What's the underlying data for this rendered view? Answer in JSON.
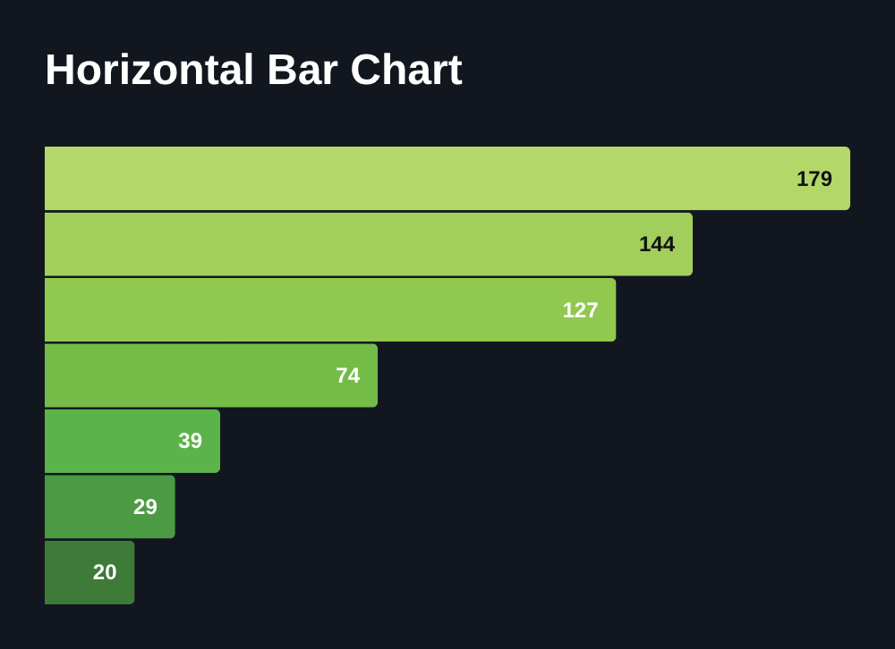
{
  "chart_data": {
    "type": "bar",
    "orientation": "horizontal",
    "title": "Horizontal Bar Chart",
    "categories": [
      null,
      null,
      null,
      null,
      null,
      null,
      null
    ],
    "values": [
      179,
      144,
      127,
      74,
      39,
      29,
      20
    ],
    "colors": [
      "#b3d869",
      "#a2cf5c",
      "#90c850",
      "#74bc48",
      "#5bb449",
      "#4c9a43",
      "#3e7a38"
    ],
    "data_labels": true
  }
}
